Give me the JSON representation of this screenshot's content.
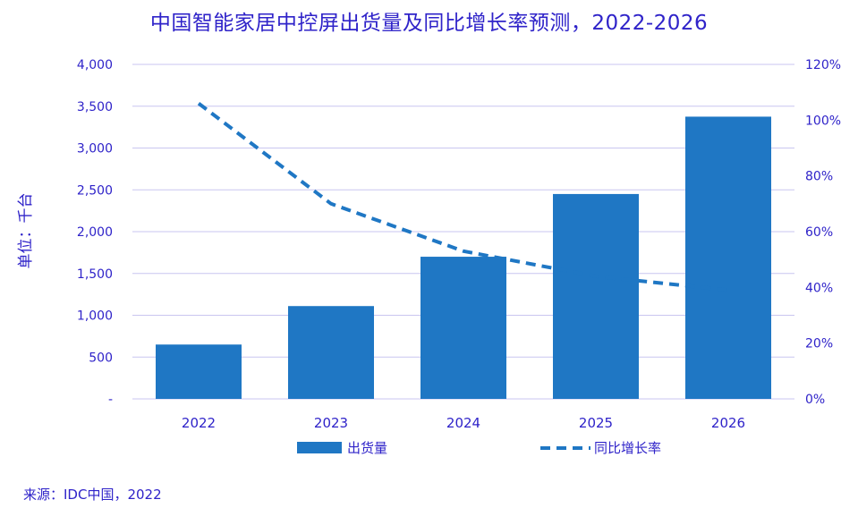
{
  "title": "中国智能家居中控屏出货量及同比增长率预测，2022-2026",
  "ylabel_left": "单位：千台",
  "source": "来源：IDC中国，2022",
  "colors": {
    "bar": "#1f77c4",
    "line": "#1f77c4",
    "text": "#2f23c9",
    "grid": "#c9c6f0"
  },
  "chart_data": {
    "type": "bar",
    "categories": [
      "2022",
      "2023",
      "2024",
      "2025",
      "2026"
    ],
    "series": [
      {
        "name": "出货量",
        "type": "bar",
        "axis": "left",
        "values": [
          650,
          1110,
          1700,
          2450,
          3375
        ]
      },
      {
        "name": "同比增长率",
        "type": "line",
        "style": "dashed",
        "axis": "right",
        "values": [
          106,
          70,
          53,
          44,
          39
        ]
      }
    ],
    "y_left": {
      "ylim": [
        0,
        4000
      ],
      "ticks": [
        0,
        500,
        1000,
        1500,
        2000,
        2500,
        3000,
        3500,
        4000
      ],
      "tick_labels": [
        "-",
        "500",
        "1,000",
        "1,500",
        "2,000",
        "2,500",
        "3,000",
        "3,500",
        "4,000"
      ]
    },
    "y_right": {
      "ylim": [
        0,
        120
      ],
      "ticks": [
        0,
        20,
        40,
        60,
        80,
        100,
        120
      ],
      "tick_labels": [
        "0%",
        "20%",
        "40%",
        "60%",
        "80%",
        "100%",
        "120%"
      ]
    },
    "legend_position": "bottom",
    "grid": true
  }
}
